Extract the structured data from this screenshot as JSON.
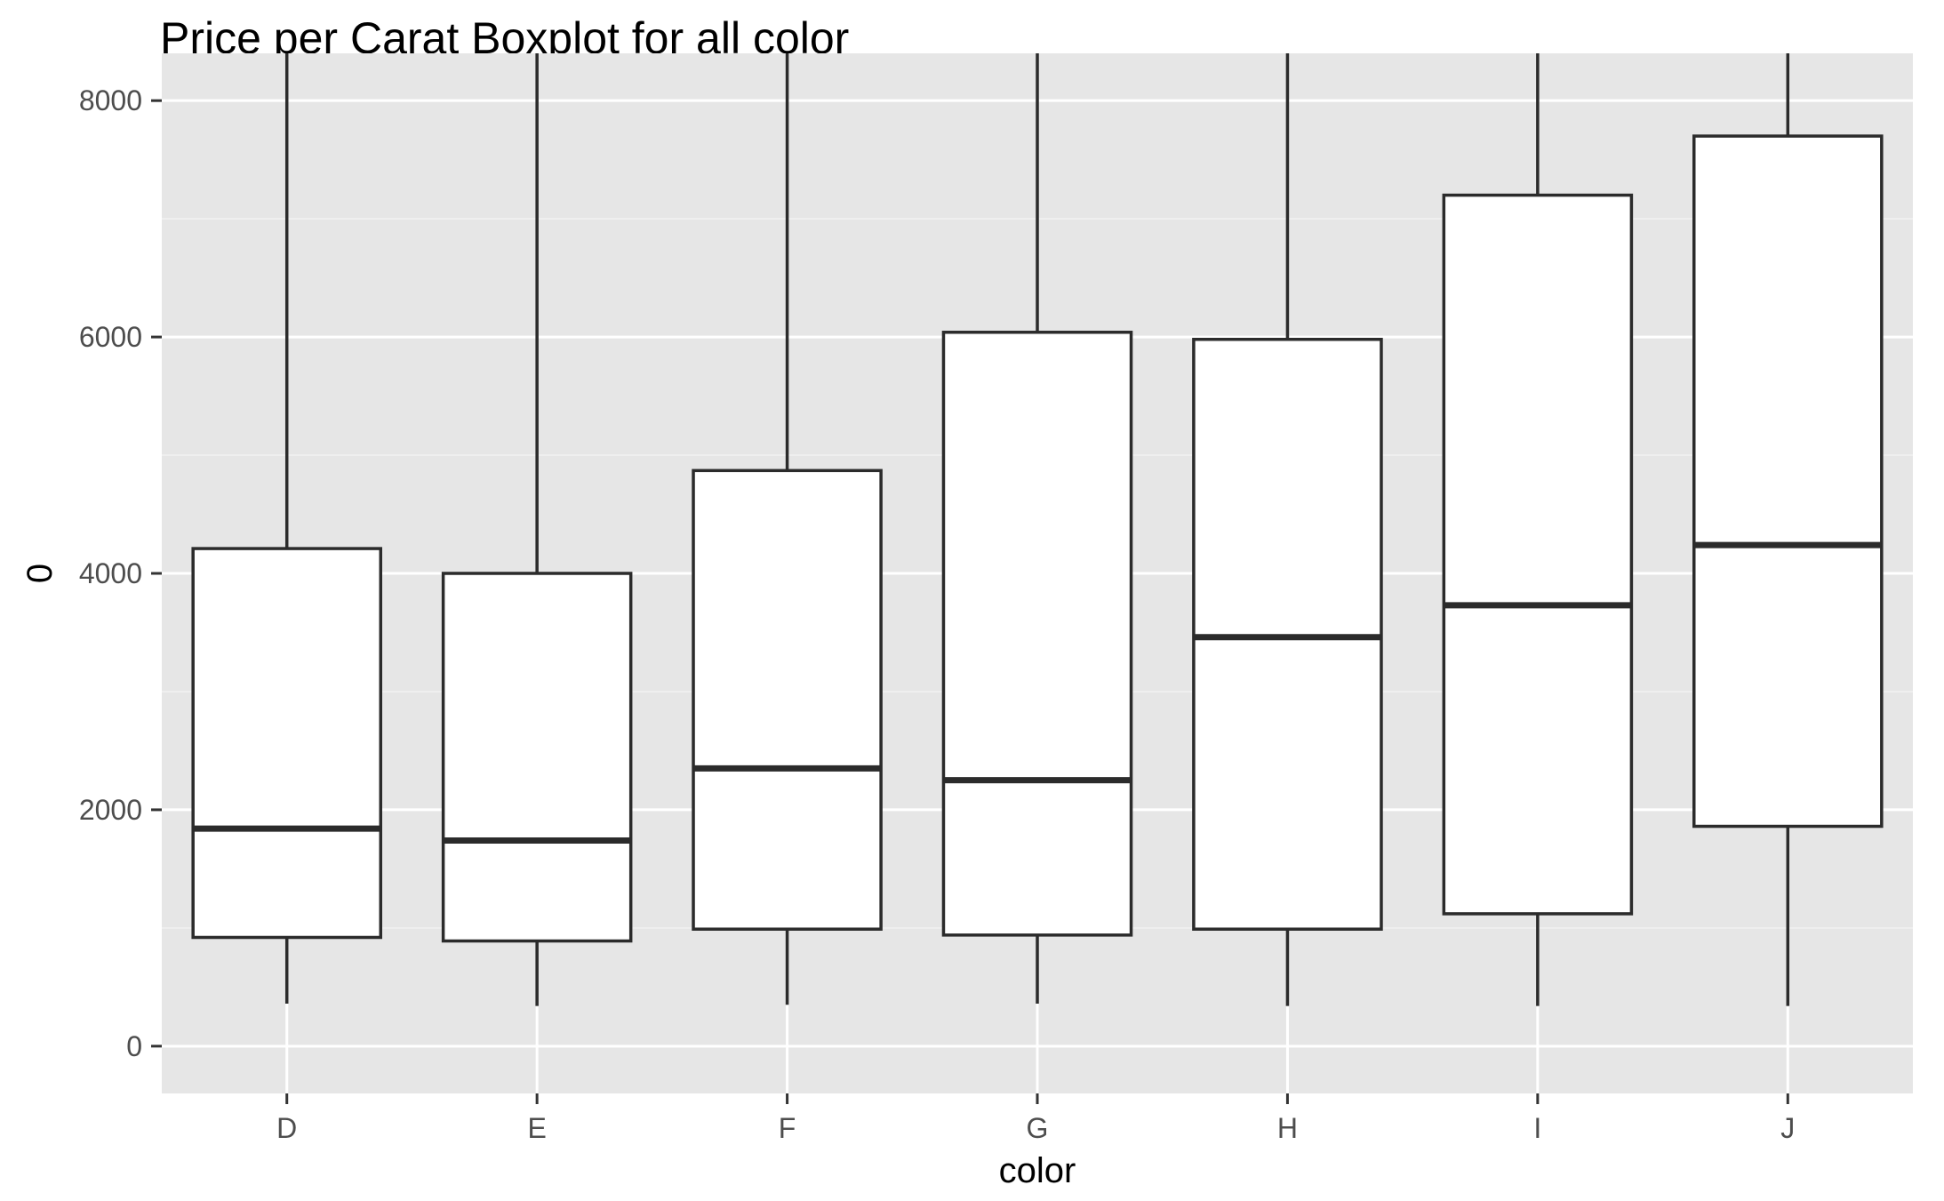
{
  "chart_data": {
    "type": "boxplot",
    "title": "Price per Carat Boxplot for all color",
    "xlabel": "color",
    "ylabel": "0",
    "categories": [
      "D",
      "E",
      "F",
      "G",
      "H",
      "I",
      "J"
    ],
    "boxes": [
      {
        "category": "D",
        "whisker_low": 360,
        "q1": 920,
        "median": 1840,
        "q3": 4210,
        "whisker_high": 8400
      },
      {
        "category": "E",
        "whisker_low": 340,
        "q1": 890,
        "median": 1740,
        "q3": 4000,
        "whisker_high": 8400
      },
      {
        "category": "F",
        "whisker_low": 350,
        "q1": 990,
        "median": 2350,
        "q3": 4870,
        "whisker_high": 8400
      },
      {
        "category": "G",
        "whisker_low": 360,
        "q1": 940,
        "median": 2250,
        "q3": 6040,
        "whisker_high": 8400
      },
      {
        "category": "H",
        "whisker_low": 340,
        "q1": 990,
        "median": 3460,
        "q3": 5980,
        "whisker_high": 8400
      },
      {
        "category": "I",
        "whisker_low": 340,
        "q1": 1120,
        "median": 3730,
        "q3": 7200,
        "whisker_high": 8400
      },
      {
        "category": "J",
        "whisker_low": 340,
        "q1": 1860,
        "median": 4240,
        "q3": 7700,
        "whisker_high": 8400
      }
    ],
    "yticks": [
      0,
      2000,
      4000,
      6000,
      8000
    ],
    "ylim": [
      -400,
      8400
    ],
    "grid": true,
    "legend": "none",
    "colors": {
      "panel_background": "#e6e6e6",
      "grid_major": "#ffffff",
      "grid_minor": "#f2f2f2",
      "box_fill": "#ffffff",
      "box_stroke": "#2b2b2b",
      "tick_label": "#4d4d4d",
      "text": "#000000"
    }
  }
}
